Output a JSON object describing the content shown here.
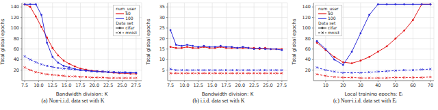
{
  "chart_data": [
    {
      "type": "line",
      "caption": "(a) Non-i.i.d. data set with K",
      "x_label": "Bandwidth division: K",
      "y_label": "Total global epochs",
      "x": [
        7.5,
        8.5,
        9.5,
        10.5,
        11.5,
        12.5,
        13.5,
        14.5,
        15.5,
        16.5,
        17.5,
        18.5,
        19.5,
        20.5,
        21.5,
        22.5,
        23.5,
        24.5,
        25.5,
        26.5,
        27.5
      ],
      "xlim": [
        7,
        28.5
      ],
      "xticks": [
        7.5,
        {
          "value": 10,
          "label": "10.0"
        },
        12.5,
        {
          "value": 15,
          "label": "15.0"
        },
        17.5,
        {
          "value": 20,
          "label": "20.0"
        },
        22.5,
        {
          "value": 25,
          "label": "25.0"
        },
        27.5
      ],
      "ylim": [
        0,
        148
      ],
      "yticks": [
        20,
        40,
        60,
        80,
        100,
        120,
        140
      ],
      "grid": true,
      "legend": "upper right",
      "legend_titles": [
        "num_user",
        "Data set"
      ],
      "series": [
        {
          "num_user": "50",
          "data_set": "cifar",
          "color": "#e41a1c",
          "line_style": "solid",
          "marker": "circle",
          "values": [
            145,
            140,
            122,
            102,
            82,
            62,
            48,
            38,
            32,
            27,
            23,
            21,
            19,
            18,
            17,
            16,
            15,
            14,
            14,
            13,
            13
          ]
        },
        {
          "num_user": "100",
          "data_set": "cifar",
          "color": "#2b2bd9",
          "line_style": "solid",
          "marker": "circle",
          "values": [
            145,
            145,
            145,
            125,
            72,
            45,
            34,
            28,
            25,
            22,
            20,
            19,
            18,
            17,
            17,
            16,
            16,
            15,
            15,
            15,
            15
          ]
        },
        {
          "num_user": "50",
          "data_set": "mnist",
          "color": "#e41a1c",
          "line_style": "dashed",
          "marker": "x",
          "values": [
            25,
            20,
            16,
            14,
            12,
            11,
            10,
            9,
            8,
            8,
            7,
            7,
            6,
            6,
            6,
            5,
            5,
            5,
            5,
            5,
            5
          ]
        },
        {
          "num_user": "100",
          "data_set": "mnist",
          "color": "#2b2bd9",
          "line_style": "dashed",
          "marker": "x",
          "values": [
            46,
            40,
            35,
            31,
            28,
            26,
            24,
            23,
            22,
            21,
            20,
            19,
            18,
            18,
            17,
            17,
            16,
            16,
            16,
            15,
            15
          ]
        }
      ]
    },
    {
      "type": "line",
      "caption": "(b) i.i.d. data set with K",
      "x_label": "Bandwidth division: K",
      "y_label": "Total global epochs",
      "x": [
        7.5,
        8.5,
        9.5,
        10.5,
        11.5,
        12.5,
        13.5,
        14.5,
        15.5,
        16.5,
        17.5,
        18.5,
        19.5,
        20.5,
        21.5,
        22.5,
        23.5,
        24.5,
        25.5,
        26.5,
        27.5
      ],
      "xlim": [
        7,
        28.5
      ],
      "xticks": [
        7.5,
        {
          "value": 10,
          "label": "10.0"
        },
        12.5,
        {
          "value": 15,
          "label": "15.0"
        },
        17.5,
        {
          "value": 20,
          "label": "20.0"
        },
        22.5,
        {
          "value": 25,
          "label": "25.0"
        },
        27.5
      ],
      "ylim": [
        0,
        37
      ],
      "yticks": [
        5,
        10,
        15,
        20,
        25,
        30,
        35
      ],
      "grid": true,
      "series": [
        {
          "num_user": "50",
          "data_set": "cifar",
          "color": "#e41a1c",
          "line_style": "solid",
          "marker": "circle",
          "values": [
            16,
            15.5,
            15.5,
            16,
            15.5,
            15.5,
            16,
            15.5,
            15.5,
            16,
            15.5,
            15.5,
            15.5,
            15.5,
            15.5,
            15.5,
            15,
            15.5,
            15,
            15,
            15
          ]
        },
        {
          "num_user": "100",
          "data_set": "cifar",
          "color": "#2b2bd9",
          "line_style": "solid",
          "marker": "circle",
          "values": [
            24,
            17,
            16.5,
            17,
            16.5,
            16,
            16.5,
            16,
            16,
            16.5,
            16,
            16,
            15.5,
            16,
            15.5,
            15,
            15.5,
            15,
            15,
            15,
            14.5
          ]
        },
        {
          "num_user": "50",
          "data_set": "mnist",
          "color": "#e41a1c",
          "line_style": "dashed",
          "marker": "x",
          "values": [
            3.5,
            3.5,
            3.5,
            3.5,
            3.5,
            3.5,
            3.5,
            3.5,
            3.5,
            3.5,
            3.5,
            3.5,
            3.5,
            3.5,
            3.5,
            3.5,
            3.5,
            3.5,
            3.5,
            3.5,
            3.5
          ]
        },
        {
          "num_user": "100",
          "data_set": "mnist",
          "color": "#2b2bd9",
          "line_style": "dashed",
          "marker": "x",
          "values": [
            5.5,
            5,
            5,
            5,
            5,
            5,
            5,
            5,
            5,
            5,
            5,
            5,
            5,
            5,
            5,
            5,
            5,
            5,
            5,
            5,
            5
          ]
        }
      ]
    },
    {
      "type": "line",
      "caption": "(c) Non-i.i.d. data set with Eₗ",
      "x_label": "Local training epochs: Eₗ",
      "y_label": "Total global epochs",
      "x": [
        5,
        10,
        15,
        20,
        25,
        30,
        35,
        40,
        45,
        50,
        55,
        60,
        65,
        70
      ],
      "xlim": [
        3,
        72
      ],
      "xticks": [
        10,
        20,
        30,
        40,
        50,
        60,
        70
      ],
      "ylim": [
        0,
        148
      ],
      "yticks": [
        20,
        40,
        60,
        80,
        100,
        120,
        140
      ],
      "grid": true,
      "legend": "upper left",
      "legend_titles": [
        "num_user",
        "Data set"
      ],
      "series": [
        {
          "num_user": "50",
          "data_set": "cifar",
          "color": "#e41a1c",
          "line_style": "solid",
          "marker": "circle",
          "values": [
            72,
            58,
            45,
            35,
            33,
            38,
            45,
            55,
            65,
            80,
            95,
            115,
            145,
            145
          ]
        },
        {
          "num_user": "100",
          "data_set": "cifar",
          "color": "#2b2bd9",
          "line_style": "solid",
          "marker": "circle",
          "values": [
            75,
            60,
            40,
            30,
            55,
            90,
            125,
            145,
            145,
            145,
            145,
            145,
            145,
            145
          ]
        },
        {
          "num_user": "50",
          "data_set": "mnist",
          "color": "#e41a1c",
          "line_style": "dashed",
          "marker": "x",
          "values": [
            12,
            9,
            7,
            6,
            6,
            5,
            5,
            5,
            5,
            6,
            6,
            6,
            6,
            7
          ]
        },
        {
          "num_user": "100",
          "data_set": "mnist",
          "color": "#2b2bd9",
          "line_style": "dashed",
          "marker": "x",
          "values": [
            25,
            20,
            17,
            15,
            15,
            15,
            16,
            17,
            18,
            19,
            20,
            20,
            21,
            22
          ]
        }
      ]
    }
  ]
}
